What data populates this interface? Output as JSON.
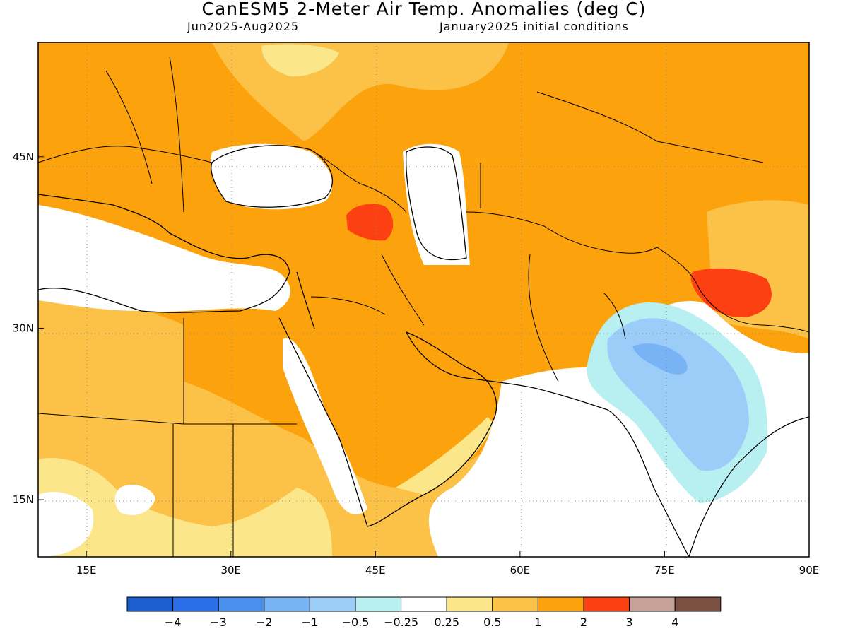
{
  "title": "CanESM5 2-Meter Air Temp. Anomalies (deg C)",
  "subtitle_left": "Jun2025-Aug2025",
  "subtitle_right": "January2025 initial conditions",
  "map_extent": {
    "lon": [
      10,
      90
    ],
    "lat": [
      10,
      55
    ]
  },
  "lon_ticks": [
    {
      "value": 15,
      "label": "15E"
    },
    {
      "value": 30,
      "label": "30E"
    },
    {
      "value": 45,
      "label": "45E"
    },
    {
      "value": 60,
      "label": "60E"
    },
    {
      "value": 75,
      "label": "75E"
    },
    {
      "value": 90,
      "label": "90E"
    }
  ],
  "lat_ticks": [
    {
      "value": 45,
      "label": "45N"
    },
    {
      "value": 30,
      "label": "30N"
    },
    {
      "value": 15,
      "label": "15N"
    }
  ],
  "colorbar": {
    "colors": [
      "#1a5ecf",
      "#2a6fe8",
      "#4a91ee",
      "#78b4f5",
      "#9ccdf8",
      "#b8f0f2",
      "#ffffff",
      "#fbe68a",
      "#fcc147",
      "#fca20c",
      "#fd4012",
      "#c6a197",
      "#7a5143"
    ],
    "labels": [
      "-4",
      "-3",
      "-2",
      "-1",
      "-0.5",
      "-0.25",
      "0.25",
      "0.5",
      "1",
      "2",
      "3",
      "4"
    ]
  }
}
